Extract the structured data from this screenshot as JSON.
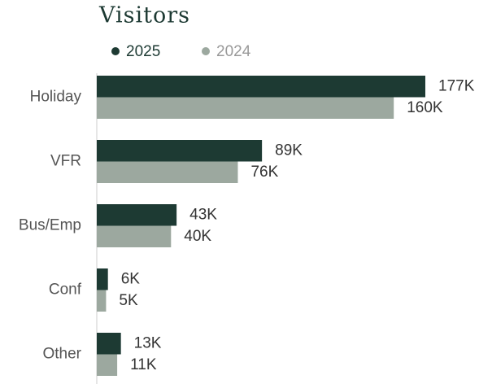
{
  "chart_data": {
    "type": "bar",
    "orientation": "horizontal",
    "title": "Visitors",
    "categories": [
      "Holiday",
      "VFR",
      "Bus/Emp",
      "Conf",
      "Other"
    ],
    "series": [
      {
        "name": "2025",
        "color": "#1d3a33",
        "values": [
          177,
          89,
          43,
          6,
          13
        ],
        "value_labels": [
          "177K",
          "89K",
          "43K",
          "6K",
          "13K"
        ]
      },
      {
        "name": "2024",
        "color": "#9ca89f",
        "values": [
          160,
          76,
          40,
          5,
          11
        ],
        "value_labels": [
          "160K",
          "76K",
          "40K",
          "5K",
          "11K"
        ]
      }
    ]
  }
}
